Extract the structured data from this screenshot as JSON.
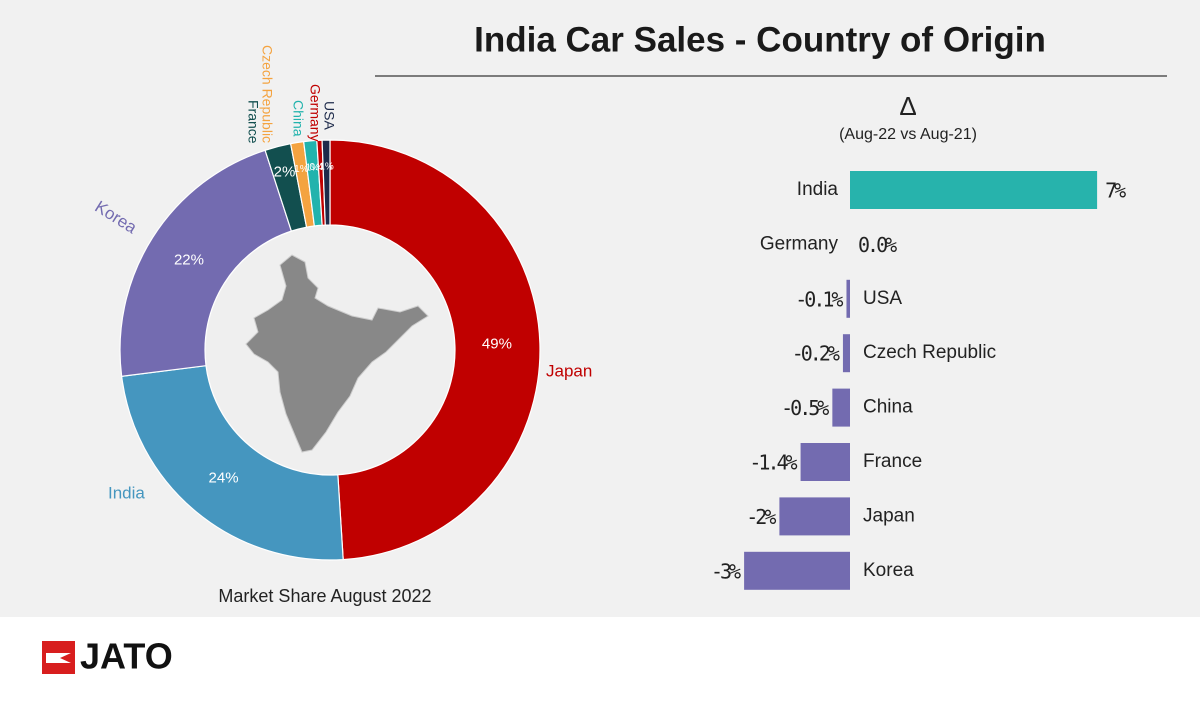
{
  "header": {
    "title": "India Car Sales - Country of Origin"
  },
  "chart_data": [
    {
      "type": "donut",
      "title": "Market Share August 2022",
      "categories": [
        "Japan",
        "India",
        "Korea",
        "France",
        "Czech Republic",
        "China",
        "Germany",
        "USA"
      ],
      "values": [
        49,
        24,
        22,
        2,
        1,
        1,
        0.4,
        0.6
      ],
      "value_labels": [
        "49%",
        "24%",
        "22%",
        "2%",
        "1%",
        "1%",
        "0.4%",
        "1%"
      ],
      "colors": [
        "#c00000",
        "#4596bf",
        "#736bb0",
        "#124f4f",
        "#f4a340",
        "#22b3ad",
        "#c00000",
        "#1d2a4a"
      ]
    },
    {
      "type": "bar",
      "orientation": "horizontal",
      "title": "Δ",
      "subtitle": "(Aug-22 vs Aug-21)",
      "categories": [
        "India",
        "Germany",
        "USA",
        "Czech Republic",
        "China",
        "France",
        "Japan",
        "Korea"
      ],
      "values": [
        7,
        0.0,
        -0.1,
        -0.2,
        -0.5,
        -1.4,
        -2,
        -3
      ],
      "value_labels": [
        "7%",
        "0.0%",
        "-0.1%",
        "-0.2%",
        "-0.5%",
        "-1.4%",
        "-2%",
        "-3%"
      ],
      "colors": [
        "#27b3ac",
        "#736bb0",
        "#736bb0",
        "#736bb0",
        "#736bb0",
        "#736bb0",
        "#736bb0",
        "#736bb0"
      ]
    }
  ],
  "footer": {
    "logo": "JATO"
  }
}
